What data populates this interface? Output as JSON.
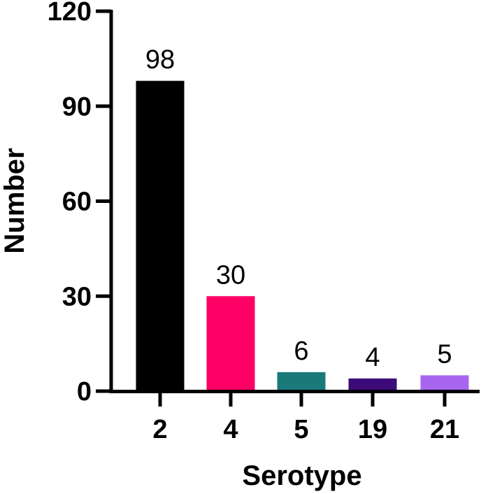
{
  "chart_data": {
    "type": "bar",
    "categories": [
      "2",
      "4",
      "5",
      "19",
      "21"
    ],
    "values": [
      98,
      30,
      6,
      4,
      5
    ],
    "data_labels": [
      "98",
      "30",
      "6",
      "4",
      "5"
    ],
    "colors": [
      "#000000",
      "#ff0066",
      "#1a7a7a",
      "#3d0a7a",
      "#a866f0"
    ],
    "xlabel": "Serotype",
    "ylabel": "Number",
    "ylim": [
      0,
      120
    ],
    "yticks": [
      0,
      30,
      60,
      90,
      120
    ],
    "grid": false,
    "legend": "none"
  }
}
